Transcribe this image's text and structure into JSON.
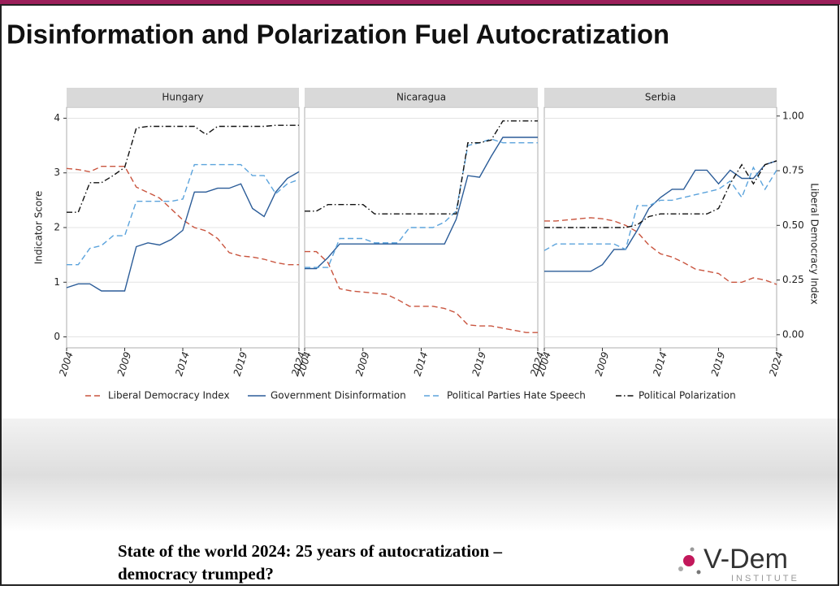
{
  "title": "Disinformation and Polarization Fuel Autocratization",
  "footer": {
    "lines": [
      "State of the world 2024: 25 years of autocratization –",
      "democracy trumped?"
    ],
    "logo": "V-Dem",
    "logo_sub": "INSTITUTE"
  },
  "chart_data": [
    {
      "type": "line",
      "title": "Hungary",
      "ylabel": "Indicator Score",
      "x": [
        2004,
        2005,
        2006,
        2007,
        2008,
        2009,
        2010,
        2011,
        2012,
        2013,
        2014,
        2015,
        2016,
        2017,
        2018,
        2019,
        2020,
        2021,
        2022,
        2023,
        2024
      ],
      "xlim": [
        2004,
        2024
      ],
      "xticks": [
        2004,
        2009,
        2014,
        2019,
        2024
      ],
      "ylim": [
        -0.2,
        4.2
      ],
      "yticks": [
        0,
        1,
        2,
        3,
        4
      ],
      "y2lim": [
        -0.06,
        1.04
      ],
      "grid": true,
      "series": [
        {
          "name": "Liberal Democracy Index",
          "color": "#c9553f",
          "style": "dashed",
          "axis": "y2",
          "values": [
            0.76,
            0.755,
            0.745,
            0.77,
            0.77,
            0.77,
            0.675,
            0.65,
            0.625,
            0.575,
            0.525,
            0.49,
            0.475,
            0.44,
            0.375,
            0.36,
            0.355,
            0.345,
            0.33,
            0.32,
            0.32
          ]
        },
        {
          "name": "Government Disinformation",
          "color": "#2b5c98",
          "style": "solid",
          "values": [
            0.9,
            0.97,
            0.97,
            0.84,
            0.84,
            0.84,
            1.65,
            1.72,
            1.68,
            1.78,
            1.95,
            2.65,
            2.65,
            2.72,
            2.72,
            2.8,
            2.35,
            2.2,
            2.65,
            2.9,
            3.02
          ]
        },
        {
          "name": "Political Parties Hate Speech",
          "color": "#5ba3dc",
          "style": "dashed",
          "values": [
            1.32,
            1.32,
            1.62,
            1.67,
            1.85,
            1.85,
            2.48,
            2.48,
            2.48,
            2.48,
            2.52,
            3.15,
            3.15,
            3.15,
            3.15,
            3.15,
            2.95,
            2.95,
            2.62,
            2.8,
            2.88
          ]
        },
        {
          "name": "Political Polarization",
          "color": "#111111",
          "style": "dotdash",
          "values": [
            2.28,
            2.28,
            2.82,
            2.82,
            2.95,
            3.1,
            3.82,
            3.85,
            3.85,
            3.85,
            3.85,
            3.85,
            3.7,
            3.85,
            3.85,
            3.85,
            3.85,
            3.85,
            3.87,
            3.87,
            3.87
          ]
        }
      ]
    },
    {
      "type": "line",
      "title": "Nicaragua",
      "x": [
        2004,
        2005,
        2006,
        2007,
        2008,
        2009,
        2010,
        2011,
        2012,
        2013,
        2014,
        2015,
        2016,
        2017,
        2018,
        2019,
        2020,
        2021,
        2022,
        2023,
        2024
      ],
      "xlim": [
        2004,
        2024
      ],
      "xticks": [
        2004,
        2009,
        2014,
        2019,
        2024
      ],
      "ylim": [
        -0.2,
        4.2
      ],
      "yticks": [
        0,
        1,
        2,
        3,
        4
      ],
      "y2lim": [
        -0.06,
        1.04
      ],
      "grid": true,
      "series": [
        {
          "color": "#c9553f",
          "style": "dashed",
          "axis": "y2",
          "values": [
            0.38,
            0.38,
            0.33,
            0.21,
            0.2,
            0.195,
            0.19,
            0.185,
            0.16,
            0.13,
            0.13,
            0.13,
            0.12,
            0.1,
            0.045,
            0.04,
            0.04,
            0.03,
            0.02,
            0.01,
            0.01
          ]
        },
        {
          "color": "#2b5c98",
          "style": "solid",
          "values": [
            1.25,
            1.25,
            1.45,
            1.7,
            1.7,
            1.7,
            1.7,
            1.7,
            1.7,
            1.7,
            1.7,
            1.7,
            1.7,
            2.15,
            2.95,
            2.92,
            3.3,
            3.65,
            3.65,
            3.65,
            3.65
          ]
        },
        {
          "color": "#5ba3dc",
          "style": "dashed",
          "values": [
            1.27,
            1.27,
            1.27,
            1.8,
            1.8,
            1.8,
            1.72,
            1.72,
            1.72,
            2.0,
            2.0,
            2.0,
            2.1,
            2.3,
            3.5,
            3.55,
            3.62,
            3.55,
            3.55,
            3.55,
            3.55
          ]
        },
        {
          "color": "#111111",
          "style": "dotdash",
          "values": [
            2.3,
            2.3,
            2.42,
            2.42,
            2.42,
            2.42,
            2.25,
            2.25,
            2.25,
            2.25,
            2.25,
            2.25,
            2.25,
            2.25,
            3.55,
            3.55,
            3.6,
            3.95,
            3.95,
            3.95,
            3.95
          ]
        }
      ]
    },
    {
      "type": "line",
      "title": "Serbia",
      "y2label": "Liberal Democracy Index",
      "x": [
        2004,
        2005,
        2006,
        2007,
        2008,
        2009,
        2010,
        2011,
        2012,
        2013,
        2014,
        2015,
        2016,
        2017,
        2018,
        2019,
        2020,
        2021,
        2022,
        2023,
        2024
      ],
      "xlim": [
        2004,
        2024
      ],
      "xticks": [
        2004,
        2009,
        2014,
        2019,
        2024
      ],
      "ylim": [
        -0.2,
        4.2
      ],
      "yticks": [
        0,
        1,
        2,
        3,
        4
      ],
      "y2lim": [
        -0.06,
        1.04
      ],
      "y2ticks": [
        {
          "value": 0,
          "label": "0.00"
        },
        {
          "value": 0.25,
          "label": "0.25"
        },
        {
          "value": 0.5,
          "label": "0.50"
        },
        {
          "value": 0.75,
          "label": "0.75"
        },
        {
          "value": 1,
          "label": "1.00"
        }
      ],
      "grid": true,
      "series": [
        {
          "color": "#c9553f",
          "style": "dashed",
          "axis": "y2",
          "values": [
            0.52,
            0.52,
            0.525,
            0.53,
            0.535,
            0.53,
            0.52,
            0.5,
            0.47,
            0.41,
            0.37,
            0.355,
            0.33,
            0.3,
            0.29,
            0.28,
            0.24,
            0.24,
            0.26,
            0.25,
            0.23
          ]
        },
        {
          "color": "#2b5c98",
          "style": "solid",
          "values": [
            1.2,
            1.2,
            1.2,
            1.2,
            1.2,
            1.32,
            1.6,
            1.6,
            1.95,
            2.35,
            2.55,
            2.7,
            2.7,
            3.05,
            3.05,
            2.8,
            3.05,
            2.9,
            2.9,
            3.15,
            3.22
          ]
        },
        {
          "color": "#5ba3dc",
          "style": "dashed",
          "values": [
            1.58,
            1.7,
            1.7,
            1.7,
            1.7,
            1.7,
            1.7,
            1.6,
            2.4,
            2.4,
            2.5,
            2.5,
            2.55,
            2.6,
            2.65,
            2.7,
            2.85,
            2.55,
            3.1,
            2.7,
            3.05
          ]
        },
        {
          "color": "#111111",
          "style": "dotdash",
          "values": [
            2.0,
            2.0,
            2.0,
            2.0,
            2.0,
            2.0,
            2.0,
            2.0,
            2.05,
            2.2,
            2.25,
            2.25,
            2.25,
            2.25,
            2.25,
            2.35,
            2.8,
            3.15,
            2.8,
            3.15,
            3.22
          ]
        }
      ]
    }
  ]
}
